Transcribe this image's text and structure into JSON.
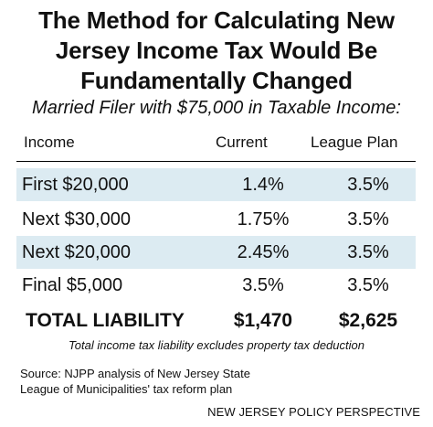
{
  "chart_data": {
    "type": "table",
    "title": [
      "The Method for Calculating New",
      "Jersey Income Tax Would Be",
      "Fundamentally Changed"
    ],
    "subtitle": "Married Filer with $75,000 in Taxable Income:",
    "columns": [
      "Income",
      "Current",
      "League Plan"
    ],
    "rows": [
      {
        "income": "First $20,000",
        "current": "1.4%",
        "league": "3.5%"
      },
      {
        "income": "Next $30,000",
        "current": "1.75%",
        "league": "3.5%"
      },
      {
        "income": "Next $20,000",
        "current": "2.45%",
        "league": "3.5%"
      },
      {
        "income": "Final $5,000",
        "current": "3.5%",
        "league": "3.5%"
      }
    ],
    "total": {
      "label": "TOTAL LIABILITY",
      "current": "$1,470",
      "league": "$2,625"
    },
    "note": "Total income tax liability excludes property tax deduction",
    "source": [
      "Source: NJPP analysis of New Jersey State",
      "League of Municipalities' tax reform plan"
    ],
    "credit": "NEW JERSEY POLICY PERSPECTIVE",
    "colors": {
      "row_shade": "#dcebf2",
      "text": "#111111"
    }
  }
}
